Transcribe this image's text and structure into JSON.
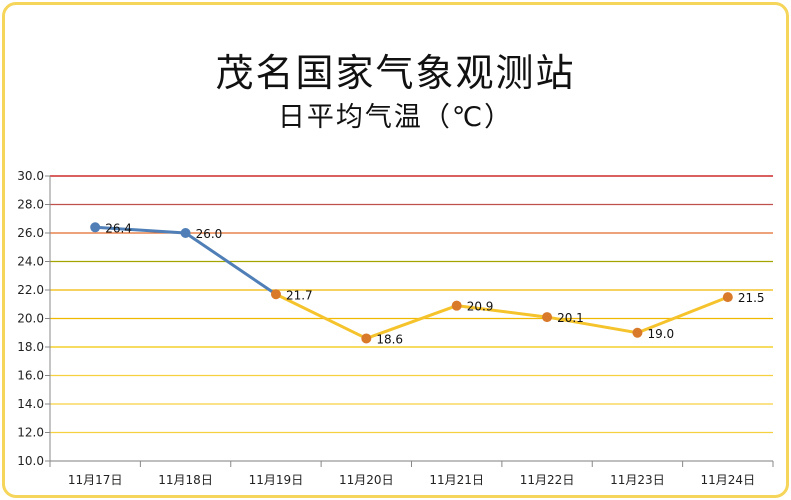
{
  "chart_data": {
    "type": "line",
    "title": "茂名国家气象观测站",
    "subtitle": "日平均气温（℃）",
    "categories": [
      "11月17日",
      "11月18日",
      "11月19日",
      "11月20日",
      "11月21日",
      "11月22日",
      "11月23日",
      "11月24日"
    ],
    "values": [
      26.4,
      26.0,
      21.7,
      18.6,
      20.9,
      20.1,
      19.0,
      21.5
    ],
    "data_labels": [
      "26.4",
      "26.0",
      "21.7",
      "18.6",
      "20.9",
      "20.1",
      "19.0",
      "21.5"
    ],
    "yticks": [
      "10.0",
      "12.0",
      "14.0",
      "16.0",
      "18.0",
      "20.0",
      "22.0",
      "24.0",
      "26.0",
      "28.0",
      "30.0"
    ],
    "ylim": [
      10,
      30
    ],
    "grid": true,
    "colors": {
      "observed_line": "#4f7fb6",
      "observed_marker": "#4f7fb6",
      "forecast_line": "#f5c32c",
      "forecast_marker": "#d97a2b",
      "frame": "#f5d55a",
      "grid_levels": {
        "30.0": "#c00000",
        "28.0": "#c0504d",
        "26.0": "#e26b2a",
        "24.0": "#a5a500",
        "22.0": "#f0b800",
        "20.0": "#f0b800",
        "18.0": "#f0c800",
        "16.0": "#f5d040",
        "14.0": "#f5d040",
        "12.0": "#f5d040",
        "10.0": "#999999"
      }
    }
  }
}
